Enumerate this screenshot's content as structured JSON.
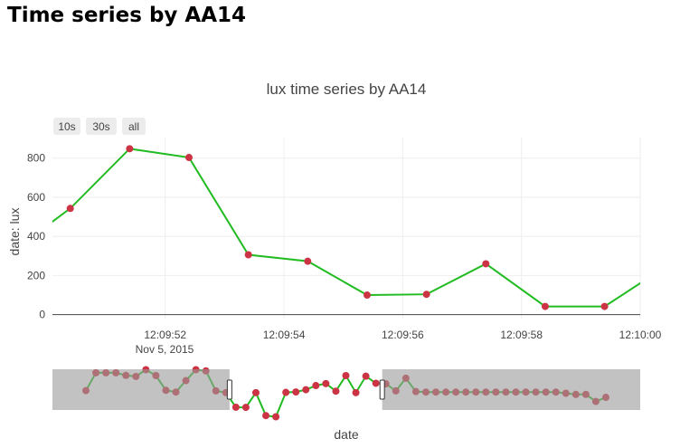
{
  "page": {
    "heading": "Time series by AA14"
  },
  "chart_data": {
    "type": "line",
    "title": "lux time series by AA14",
    "xlabel": "date",
    "ylabel": "date: lux",
    "range_buttons": [
      "10s",
      "30s",
      "all"
    ],
    "x_ticks": [
      "12:09:52",
      "12:09:54",
      "12:09:56",
      "12:09:58",
      "12:10:00"
    ],
    "x_tick_sublabel": "Nov 5, 2015",
    "y_ticks": [
      0,
      200,
      400,
      600,
      800
    ],
    "ylim": [
      -20,
      905
    ],
    "xlim_seconds": [
      50.1,
      60.0
    ],
    "grid": true,
    "colors": {
      "line": "#22bb22",
      "marker": "#cc3344",
      "slider_mask": "#999999"
    },
    "series": [
      {
        "x": [
          "12:09:49.9",
          "12:09:50.4",
          "12:09:51.4",
          "12:09:52.4",
          "12:09:53.4",
          "12:09:54.4",
          "12:09:55.4",
          "12:09:56.4",
          "12:09:57.4",
          "12:09:58.4",
          "12:09:59.4",
          "12:10:00.4"
        ],
        "y": [
          430,
          543,
          848,
          803,
          306,
          273,
          100,
          104,
          260,
          42,
          42,
          240
        ]
      }
    ],
    "rangeslider": {
      "values": [
        545,
        848,
        848,
        848,
        803,
        785,
        900,
        800,
        550,
        520,
        715,
        900,
        880,
        540,
        510,
        262,
        260,
        510,
        120,
        100,
        515,
        522,
        560,
        630,
        664,
        535,
        800,
        510,
        790,
        670,
        660,
        540,
        755,
        528,
        520,
        520,
        520,
        520,
        520,
        520,
        520,
        520,
        520,
        520,
        520,
        520,
        520,
        520,
        500,
        480,
        480,
        360,
        430
      ],
      "window": [
        15,
        29
      ]
    }
  }
}
